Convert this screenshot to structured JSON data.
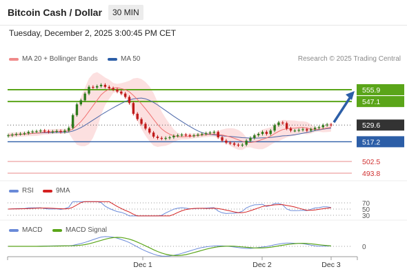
{
  "header": {
    "title": "Bitcoin Cash / Dollar",
    "interval": "30 MIN"
  },
  "timestamp": "Tuesday, December 2, 2025 3:00:45 PM CET",
  "legend": {
    "ma_bb": "MA 20 + Bollinger Bands",
    "ma50": "MA 50",
    "rsi": "RSI",
    "ma9": "9MA",
    "macd": "MACD",
    "macd_signal": "MACD Signal"
  },
  "credit": "Research © 2025 Trading Central",
  "colors": {
    "resistance": "#5aa519",
    "support": "#2c5ea7",
    "current": "#333333",
    "target": "#e05a5a",
    "ma20": "#f07070",
    "ma50": "#4a66a8",
    "bb": "#fbd6d6",
    "up": "#2d7a1b",
    "down": "#c01a1a",
    "rsi": "#6a8ad8",
    "macd": "#6a8ad8",
    "signal": "#5aa519"
  },
  "chart_data": {
    "type": "candlestick",
    "x_ticks": [
      "Dec 1",
      "Dec 2",
      "Dec 3"
    ],
    "levels": [
      {
        "value": 555.9,
        "label": "555.9",
        "kind": "resistance"
      },
      {
        "value": 547.1,
        "label": "547.1",
        "kind": "resistance"
      },
      {
        "value": 529.6,
        "label": "529.6",
        "kind": "current"
      },
      {
        "value": 517.2,
        "label": "517.2",
        "kind": "support"
      },
      {
        "value": 502.5,
        "label": "502.5",
        "kind": "target"
      },
      {
        "value": 493.8,
        "label": "493.8",
        "kind": "target"
      }
    ],
    "price_range": [
      493.8,
      555.9
    ],
    "closes": [
      522.0,
      522.5,
      523.0,
      523.2,
      523.5,
      524.5,
      524.8,
      525.0,
      525.5,
      525.0,
      524.5,
      524.8,
      525.2,
      524.5,
      525.5,
      527.5,
      537.0,
      545.0,
      548.0,
      553.0,
      558.0,
      557.5,
      558.5,
      559.5,
      558.0,
      557.0,
      556.0,
      554.5,
      553.0,
      550.5,
      546.0,
      538.0,
      534.0,
      530.5,
      527.0,
      524.0,
      521.0,
      520.0,
      519.5,
      520.0,
      520.5,
      521.5,
      522.0,
      522.5,
      522.0,
      521.5,
      522.0,
      522.5,
      523.0,
      523.5,
      524.0,
      524.5,
      520.5,
      518.0,
      516.5,
      516.0,
      515.0,
      514.5,
      515.0,
      518.0,
      520.0,
      522.0,
      523.0,
      524.5,
      523.0,
      525.5,
      529.5,
      531.5,
      531.0,
      527.0,
      525.5,
      525.5,
      526.0,
      526.5,
      525.5,
      526.5,
      527.5,
      528.0,
      529.5,
      530.0,
      529.6
    ],
    "rsi_levels": [
      70,
      50,
      30
    ],
    "macd_levels": [
      0
    ]
  }
}
